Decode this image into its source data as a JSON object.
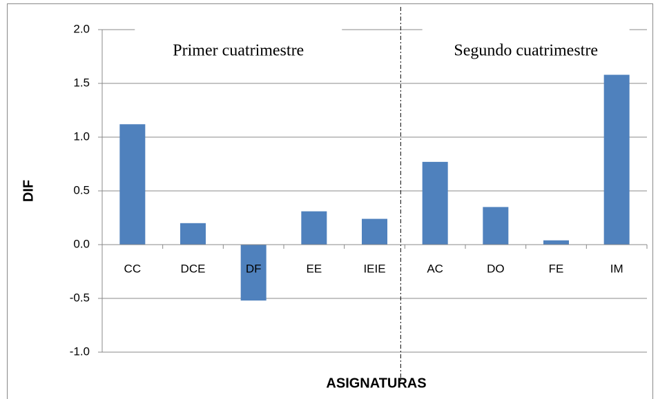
{
  "chart_data": {
    "type": "bar",
    "categories": [
      "CC",
      "DCE",
      "DF",
      "EE",
      "IEIE",
      "AC",
      "DO",
      "FE",
      "IM"
    ],
    "values": [
      1.12,
      0.2,
      -0.52,
      0.31,
      0.24,
      0.77,
      0.35,
      0.04,
      1.58
    ],
    "color": "#4f81bd",
    "ylim": [
      -1,
      2
    ],
    "yticks": [
      {
        "value": -1,
        "label": "-1.0"
      },
      {
        "value": -0.5,
        "label": "-0.5"
      },
      {
        "value": 0,
        "label": "0.0"
      },
      {
        "value": 0.5,
        "label": "0.5"
      },
      {
        "value": 1,
        "label": "1.0"
      },
      {
        "value": 1.5,
        "label": "1.5"
      },
      {
        "value": 2,
        "label": "2.0"
      }
    ],
    "grid": true,
    "x_label": "ASIGNATURAS",
    "y_label": "DIF",
    "annotations": [
      "Primer cuatrimestre",
      "Segundo cuatrimestre"
    ]
  }
}
